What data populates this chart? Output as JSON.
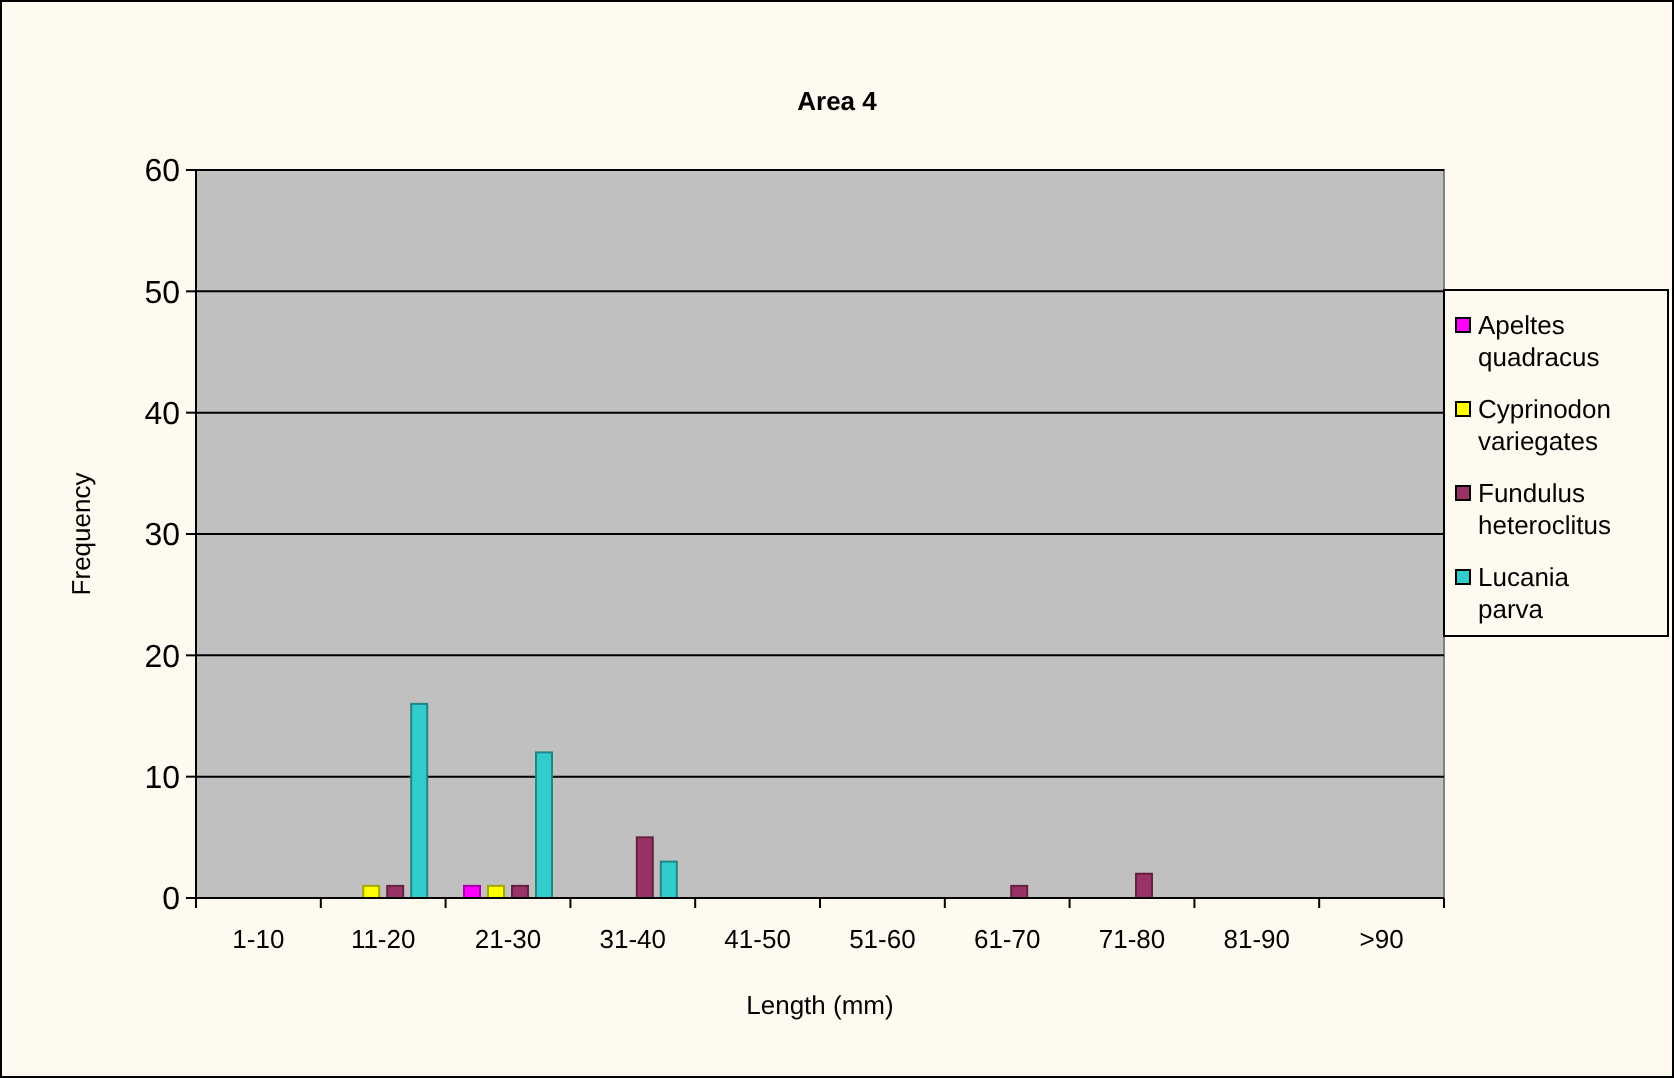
{
  "chart_data": {
    "type": "bar",
    "title": "Area 4",
    "xlabel": "Length (mm)",
    "ylabel": "Frequency",
    "categories": [
      "1-10",
      "11-20",
      "21-30",
      "31-40",
      "41-50",
      "51-60",
      "61-70",
      "71-80",
      "81-90",
      ">90"
    ],
    "series": [
      {
        "name": "Apeltes quadracus",
        "color": "#ff00ff",
        "values": [
          0,
          0,
          1,
          0,
          0,
          0,
          0,
          0,
          0,
          0
        ]
      },
      {
        "name": "Cyprinodon variegates",
        "color": "#ffff00",
        "values": [
          0,
          1,
          1,
          0,
          0,
          0,
          0,
          0,
          0,
          0
        ]
      },
      {
        "name": "Fundulus heteroclitus",
        "color": "#993366",
        "values": [
          0,
          1,
          1,
          5,
          0,
          0,
          1,
          2,
          0,
          0
        ]
      },
      {
        "name": "Lucania parva",
        "color": "#33cccc",
        "values": [
          0,
          16,
          12,
          3,
          0,
          0,
          0,
          0,
          0,
          0
        ]
      }
    ],
    "ylim": [
      0,
      60
    ],
    "yticks": [
      0,
      10,
      20,
      30,
      40,
      50,
      60
    ],
    "grid": "y",
    "legend": "right"
  }
}
